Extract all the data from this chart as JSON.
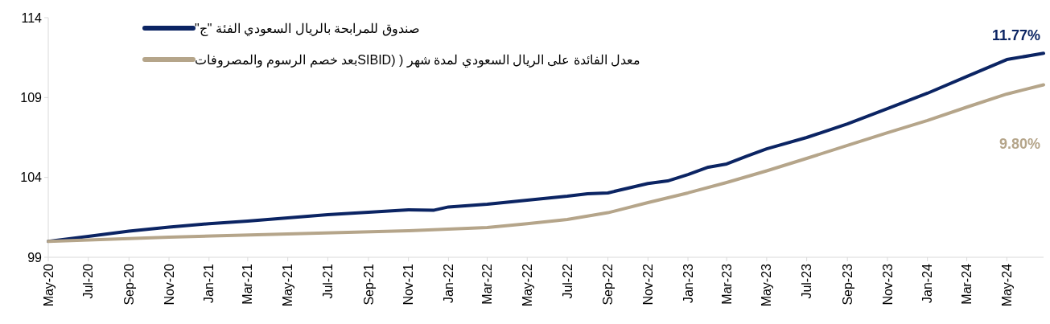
{
  "chart_data": {
    "type": "line",
    "series": [
      {
        "name": "صندوق للمرابحة بالريال السعودي الفئة \"ج\"",
        "color": "#0b2463",
        "x": [
          "2020-05-01",
          "2020-07-01",
          "2020-09-01",
          "2020-11-01",
          "2021-01-01",
          "2021-03-01",
          "2021-05-01",
          "2021-07-01",
          "2021-09-01",
          "2021-11-01",
          "2021-12-10",
          "2022-01-01",
          "2022-03-01",
          "2022-05-01",
          "2022-07-01",
          "2022-08-01",
          "2022-09-01",
          "2022-11-01",
          "2022-12-01",
          "2023-01-01",
          "2023-02-01",
          "2023-03-01",
          "2023-04-01",
          "2023-05-01",
          "2023-07-01",
          "2023-09-01",
          "2023-11-01",
          "2024-01-01",
          "2024-03-01",
          "2024-05-01",
          "2024-06-26"
        ],
        "values": [
          100.0,
          100.31,
          100.64,
          100.89,
          101.1,
          101.26,
          101.47,
          101.67,
          101.82,
          101.97,
          101.95,
          102.15,
          102.32,
          102.57,
          102.82,
          102.98,
          103.03,
          103.62,
          103.78,
          104.18,
          104.64,
          104.84,
          105.34,
          105.79,
          106.5,
          107.35,
          108.3,
          109.27,
          110.32,
          111.38,
          111.77
        ]
      },
      {
        "name": "معدل الفائدة على الريال السعودي لمدة شهر ( (SIBIDبعد خصم الرسوم والمصروفات",
        "color": "#b5a58a",
        "x": [
          "2020-05-01",
          "2020-11-01",
          "2021-05-01",
          "2021-11-01",
          "2022-03-01",
          "2022-05-01",
          "2022-07-01",
          "2022-09-01",
          "2022-11-01",
          "2023-01-01",
          "2023-03-01",
          "2023-05-01",
          "2023-07-01",
          "2023-09-01",
          "2023-11-01",
          "2024-01-01",
          "2024-03-01",
          "2024-05-01",
          "2024-06-26"
        ],
        "values": [
          100.0,
          100.26,
          100.46,
          100.66,
          100.86,
          101.1,
          101.37,
          101.79,
          102.42,
          103.03,
          103.68,
          104.41,
          105.19,
          106.0,
          106.8,
          107.56,
          108.4,
          109.22,
          109.8
        ]
      }
    ],
    "xlim": [
      "2020-05-01",
      "2024-06-26"
    ],
    "xticks": [
      {
        "value": "2020-05",
        "label": "May-20"
      },
      {
        "value": "2020-07",
        "label": "Jul-20"
      },
      {
        "value": "2020-09",
        "label": "Sep-20"
      },
      {
        "value": "2020-11",
        "label": "Nov-20"
      },
      {
        "value": "2021-01",
        "label": "Jan-21"
      },
      {
        "value": "2021-03",
        "label": "Mar-21"
      },
      {
        "value": "2021-05",
        "label": "May-21"
      },
      {
        "value": "2021-07",
        "label": "Jul-21"
      },
      {
        "value": "2021-09",
        "label": "Sep-21"
      },
      {
        "value": "2021-11",
        "label": "Nov-21"
      },
      {
        "value": "2022-01",
        "label": "Jan-22"
      },
      {
        "value": "2022-03",
        "label": "Mar-22"
      },
      {
        "value": "2022-05",
        "label": "May-22"
      },
      {
        "value": "2022-07",
        "label": "Jul-22"
      },
      {
        "value": "2022-09",
        "label": "Sep-22"
      },
      {
        "value": "2022-11",
        "label": "Nov-22"
      },
      {
        "value": "2023-01",
        "label": "Jan-23"
      },
      {
        "value": "2023-03",
        "label": "Mar-23"
      },
      {
        "value": "2023-05",
        "label": "May-23"
      },
      {
        "value": "2023-07",
        "label": "Jul-23"
      },
      {
        "value": "2023-09",
        "label": "Sep-23"
      },
      {
        "value": "2023-11",
        "label": "Nov-23"
      },
      {
        "value": "2024-01",
        "label": "Jan-24"
      },
      {
        "value": "2024-03",
        "label": "Mar-24"
      },
      {
        "value": "2024-05",
        "label": "May-24"
      }
    ],
    "ylim": [
      99,
      114
    ],
    "yticks": [
      99,
      104,
      109,
      114
    ],
    "grid": false,
    "legend": "top left",
    "marker": "none",
    "line_style": "solid",
    "annotations": [
      "11.77%",
      "9.80%"
    ]
  }
}
